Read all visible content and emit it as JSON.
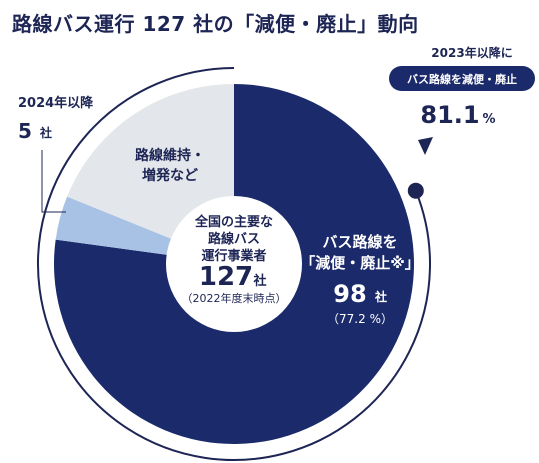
{
  "title": "路線バス運行 127 社の「減便・廃止」動向",
  "colors": {
    "navy": "#1b2a6b",
    "light_blue": "#a8c2e6",
    "gray": "#e3e6ea",
    "text_dark": "#1d2555"
  },
  "chart_data": {
    "type": "pie",
    "title": "路線バス運行 127 社の「減便・廃止」動向",
    "total": 127,
    "slices": [
      {
        "name": "バス路線を「減便・廃止※」",
        "value": 98,
        "percent": 77.2,
        "color": "#1b2a6b"
      },
      {
        "name": "2024年以降",
        "value": 5,
        "color": "#a8c2e6"
      },
      {
        "name": "路線維持・増発など",
        "value": 24,
        "color": "#e3e6ea"
      }
    ]
  },
  "center": {
    "line1": "全国の主要な",
    "line2": "路線バス",
    "line3": "運行事業者",
    "count": "127",
    "unit": "社",
    "note": "（2022年度末時点）"
  },
  "reduce_label": {
    "line1": "バス路線を",
    "line2": "「減便・廃止※」",
    "count": "98",
    "unit": "社",
    "pct": "（77.2 %）"
  },
  "maintain_label": {
    "line1": "路線維持・",
    "line2": "増発など"
  },
  "after2024": {
    "heading": "2024年以降",
    "count": "5",
    "unit": "社"
  },
  "callout": {
    "heading": "2023年以降に",
    "badge": "バス路線を減便・廃止",
    "value": "81.1",
    "unit": "%"
  }
}
